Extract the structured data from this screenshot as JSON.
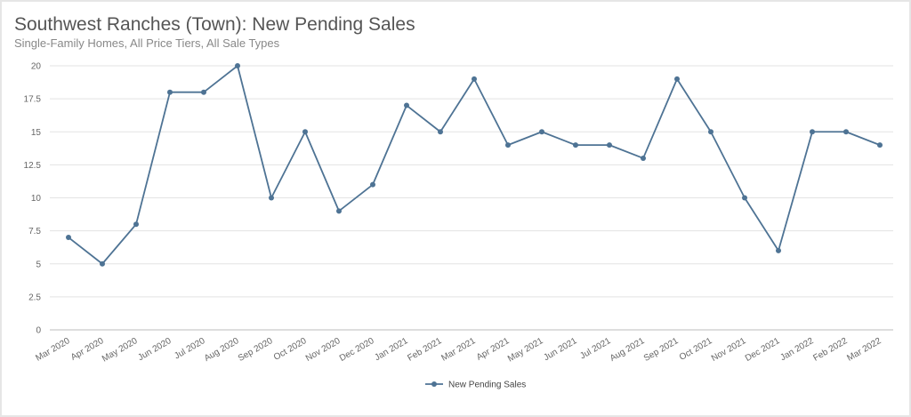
{
  "chart_data": {
    "type": "line",
    "title": "Southwest Ranches (Town): New Pending Sales",
    "subtitle": "Single-Family Homes, All Price Tiers, All Sale Types",
    "xlabel": "",
    "ylabel": "",
    "ylim": [
      0,
      20
    ],
    "yticks": [
      "0",
      "2.5",
      "5",
      "7.5",
      "10",
      "12.5",
      "15",
      "17.5",
      "20"
    ],
    "grid": true,
    "legend_position": "bottom",
    "categories": [
      "Mar 2020",
      "Apr 2020",
      "May 2020",
      "Jun 2020",
      "Jul 2020",
      "Aug 2020",
      "Sep 2020",
      "Oct 2020",
      "Nov 2020",
      "Dec 2020",
      "Jan 2021",
      "Feb 2021",
      "Mar 2021",
      "Apr 2021",
      "May 2021",
      "Jun 2021",
      "Jul 2021",
      "Aug 2021",
      "Sep 2021",
      "Oct 2021",
      "Nov 2021",
      "Dec 2021",
      "Jan 2022",
      "Feb 2022",
      "Mar 2022"
    ],
    "series": [
      {
        "name": "New Pending Sales",
        "color": "#4e7394",
        "values": [
          7,
          5,
          8,
          18,
          18,
          20,
          10,
          15,
          9,
          11,
          17,
          15,
          19,
          14,
          15,
          14,
          14,
          13,
          19,
          15,
          10,
          6,
          15,
          15,
          14
        ]
      }
    ]
  }
}
